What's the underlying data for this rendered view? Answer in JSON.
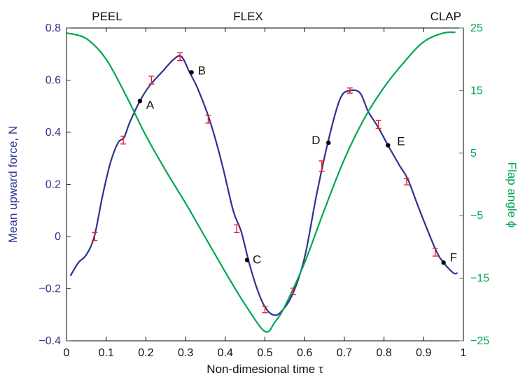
{
  "chart_data": {
    "type": "line",
    "phases": [
      "PEEL",
      "FLEX",
      "CLAP"
    ],
    "xlabel": "Non-dimesional time τ",
    "ylabel_left": "Mean upward force, N",
    "ylabel_right": "Flap angle ϕ",
    "xlim": [
      0,
      1
    ],
    "ylim_left": [
      -0.4,
      0.8
    ],
    "ylim_right": [
      -25,
      25
    ],
    "x_ticks": [
      0,
      0.1,
      0.2,
      0.3,
      0.4,
      0.5,
      0.6,
      0.7,
      0.8,
      0.9,
      1
    ],
    "x_tick_labels": [
      "0",
      "0.1",
      "0.2",
      "0.3",
      "0.4",
      "0.5",
      "0.6",
      "0.7",
      "0.8",
      "0.9",
      "1"
    ],
    "y_left_ticks": [
      -0.4,
      -0.2,
      0,
      0.2,
      0.4,
      0.6,
      0.8
    ],
    "y_left_tick_labels": [
      "−0.4",
      "−0.2",
      "0",
      "0.2",
      "0.4",
      "0.6",
      "0.8"
    ],
    "y_right_ticks": [
      -25,
      -15,
      -5,
      5,
      15,
      25
    ],
    "y_right_tick_labels": [
      "−25",
      "−15",
      "−5",
      "5",
      "15",
      "25"
    ],
    "colors": {
      "force": "#2e3192",
      "angle": "#00a651",
      "error": "#ed1c24",
      "point": "#000000"
    },
    "series": [
      {
        "axis": "left",
        "x": [
          0.01,
          0.03,
          0.05,
          0.07,
          0.09,
          0.11,
          0.13,
          0.145,
          0.16,
          0.185,
          0.21,
          0.24,
          0.27,
          0.29,
          0.31,
          0.33,
          0.36,
          0.39,
          0.42,
          0.44,
          0.46,
          0.48,
          0.5,
          0.52,
          0.54,
          0.57,
          0.6,
          0.63,
          0.66,
          0.69,
          0.715,
          0.74,
          0.76,
          0.785,
          0.81,
          0.84,
          0.86,
          0.89,
          0.93,
          0.95,
          0.975,
          0.985
        ],
        "y": [
          -0.15,
          -0.1,
          -0.07,
          0.0,
          0.15,
          0.28,
          0.36,
          0.38,
          0.44,
          0.52,
          0.58,
          0.63,
          0.68,
          0.69,
          0.63,
          0.57,
          0.45,
          0.29,
          0.1,
          0.02,
          -0.1,
          -0.2,
          -0.27,
          -0.3,
          -0.29,
          -0.22,
          -0.08,
          0.16,
          0.37,
          0.53,
          0.56,
          0.55,
          0.48,
          0.42,
          0.35,
          0.27,
          0.22,
          0.1,
          -0.05,
          -0.1,
          -0.14,
          -0.14
        ]
      },
      {
        "axis": "right",
        "x": [
          0.0,
          0.05,
          0.1,
          0.15,
          0.2,
          0.25,
          0.3,
          0.35,
          0.4,
          0.45,
          0.5,
          0.525,
          0.55,
          0.6,
          0.65,
          0.7,
          0.75,
          0.8,
          0.85,
          0.9,
          0.95,
          0.98
        ],
        "y": [
          24.2,
          23.3,
          20.0,
          14.2,
          7.8,
          2.2,
          -3.0,
          -8.5,
          -14.0,
          -19.2,
          -23.5,
          -22.0,
          -19.5,
          -12.5,
          -4.0,
          4.0,
          10.5,
          15.5,
          19.5,
          22.8,
          24.2,
          24.3
        ]
      }
    ],
    "error_bars": {
      "x": [
        0.071,
        0.143,
        0.214,
        0.286,
        0.357,
        0.429,
        0.5,
        0.571,
        0.643,
        0.714,
        0.786,
        0.857,
        0.929
      ],
      "y": [
        0.0,
        0.37,
        0.6,
        0.69,
        0.45,
        0.03,
        -0.28,
        -0.21,
        0.27,
        0.56,
        0.43,
        0.21,
        -0.06
      ],
      "err": [
        0.015,
        0.015,
        0.015,
        0.015,
        0.015,
        0.015,
        0.012,
        0.012,
        0.02,
        0.01,
        0.015,
        0.012,
        0.015
      ]
    },
    "points": [
      {
        "label": "A",
        "x": 0.185,
        "y": 0.52
      },
      {
        "label": "B",
        "x": 0.315,
        "y": 0.63
      },
      {
        "label": "C",
        "x": 0.455,
        "y": -0.09
      },
      {
        "label": "D",
        "x": 0.66,
        "y": 0.36
      },
      {
        "label": "E",
        "x": 0.81,
        "y": 0.35
      },
      {
        "label": "F",
        "x": 0.95,
        "y": -0.1
      }
    ]
  }
}
